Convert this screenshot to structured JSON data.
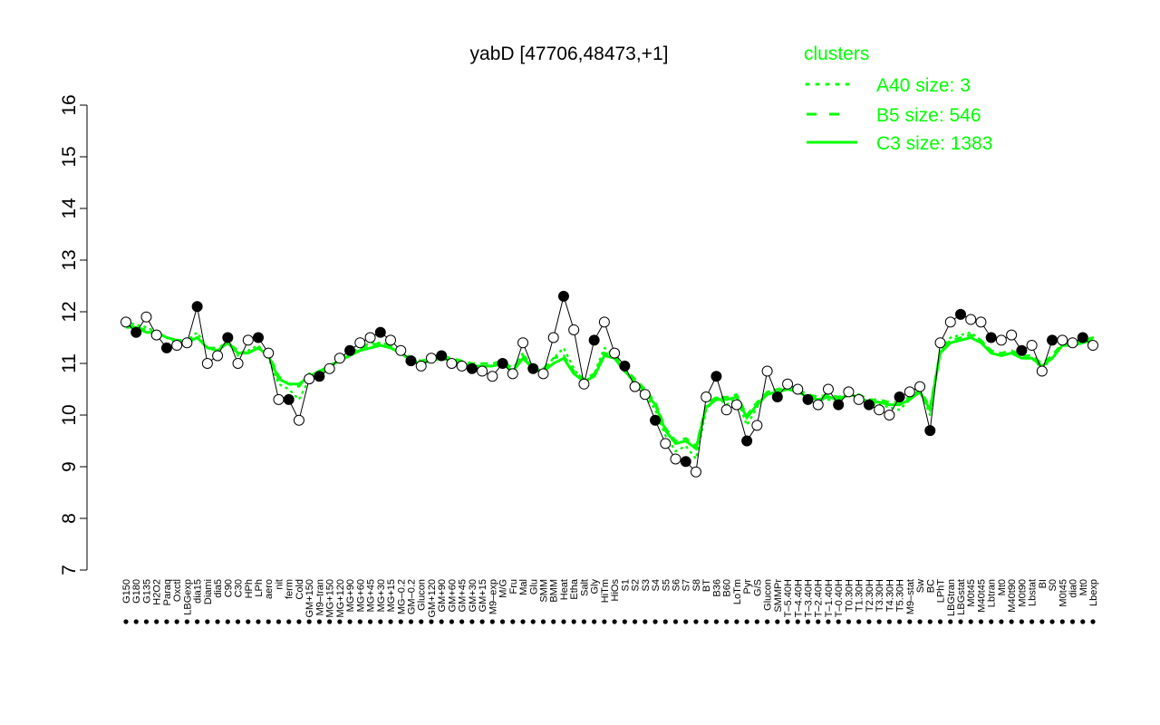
{
  "chart_data": {
    "type": "line",
    "title": "yabD [47706,48473,+1]",
    "xlabel": "",
    "ylabel": "",
    "ylim": [
      7,
      16
    ],
    "yticks": [
      7,
      8,
      9,
      10,
      11,
      12,
      13,
      14,
      15,
      16
    ],
    "legend": {
      "title": "clusters",
      "position": "top-right",
      "entries": [
        {
          "label": "A40 size: 3",
          "style": "dotted"
        },
        {
          "label": "B5 size: 546",
          "style": "dashed"
        },
        {
          "label": "C3 size: 1383",
          "style": "solid"
        }
      ]
    },
    "x_tick_labels": [
      "G150",
      "G180",
      "G135",
      "H2O2",
      "Paraq",
      "Oxctl",
      "LBGexp",
      "dia15",
      "Diami",
      "dia5",
      "C90",
      "C30",
      "HPh",
      "LPh",
      "aero",
      "nit",
      "ferm",
      "Cold",
      "GM+150",
      "M9–tran",
      "MG+150",
      "MG+120",
      "MG+90",
      "MG+60",
      "MG+45",
      "MG+30",
      "MG+15",
      "MG–0.2",
      "GM–0.2",
      "Glucon",
      "GM+120",
      "GM+90",
      "GM+60",
      "GM+45",
      "GM+30",
      "GM+15",
      "M9–exp",
      "M/G",
      "Fru",
      "Mal",
      "Glu",
      "SMM",
      "BMM",
      "Heat",
      "Etha",
      "Salt",
      "Gly",
      "HiTm",
      "HiOs",
      "S1",
      "S2",
      "S3",
      "S4",
      "S5",
      "S6",
      "S7",
      "S8",
      "BT",
      "B36",
      "B60",
      "LoTm",
      "Pyr",
      "G/S",
      "Glucon",
      "SMMPr",
      "T–5.40H",
      "T–4.40H",
      "T–3.40H",
      "T–2.40H",
      "T–1.40H",
      "T–0.40H",
      "T0.30H",
      "T1.30H",
      "T2.30H",
      "T3.30H",
      "T4.30H",
      "T5.30H",
      "M9–stat",
      "Sw",
      "BC",
      "LPhT",
      "LBGtran",
      "LBGstat",
      "M0t45",
      "M40t45",
      "Lbtran",
      "Mt0",
      "M40t90",
      "M0t90",
      "Lbstat",
      "BI",
      "S0",
      "M0t45",
      "dia0",
      "Mt0",
      "Lbexp"
    ],
    "series": [
      {
        "name": "C3 size: 1383",
        "style": "solid",
        "color": "#00ff00",
        "values": [
          11.7,
          11.7,
          11.6,
          11.6,
          11.5,
          11.45,
          11.4,
          11.5,
          11.3,
          11.25,
          11.4,
          11.2,
          11.2,
          11.3,
          11.15,
          10.7,
          10.6,
          10.6,
          10.75,
          10.85,
          10.95,
          11.05,
          11.15,
          11.25,
          11.3,
          11.35,
          11.3,
          11.2,
          11.05,
          11.0,
          11.05,
          11.1,
          11.05,
          11.0,
          10.95,
          10.95,
          10.95,
          11.0,
          10.85,
          11.1,
          10.9,
          10.85,
          11.0,
          11.1,
          10.8,
          10.65,
          10.75,
          11.15,
          11.1,
          10.85,
          10.65,
          10.45,
          10.2,
          9.7,
          9.45,
          9.5,
          9.35,
          10.15,
          10.3,
          10.3,
          10.35,
          9.95,
          10.2,
          10.4,
          10.45,
          10.5,
          10.45,
          10.35,
          10.3,
          10.35,
          10.3,
          10.4,
          10.35,
          10.25,
          10.25,
          10.2,
          10.2,
          10.3,
          10.45,
          10.1,
          11.2,
          11.4,
          11.45,
          11.5,
          11.4,
          11.2,
          11.15,
          11.2,
          11.1,
          11.1,
          10.95,
          11.1,
          11.35,
          11.35,
          11.4,
          11.45
        ]
      },
      {
        "name": "B5 size: 546",
        "style": "dashed",
        "color": "#00ff00",
        "values": [
          11.75,
          11.7,
          11.65,
          11.6,
          11.5,
          11.45,
          11.45,
          11.5,
          11.3,
          11.3,
          11.4,
          11.25,
          11.2,
          11.3,
          11.2,
          10.75,
          10.6,
          10.55,
          10.8,
          10.85,
          10.95,
          11.1,
          11.2,
          11.3,
          11.35,
          11.4,
          11.35,
          11.25,
          11.1,
          11.05,
          11.1,
          11.15,
          11.1,
          11.05,
          11.0,
          11.0,
          11.0,
          11.05,
          10.9,
          11.15,
          10.95,
          10.9,
          11.1,
          11.15,
          10.85,
          10.7,
          10.8,
          11.2,
          11.15,
          10.9,
          10.7,
          10.5,
          10.25,
          9.75,
          9.5,
          9.55,
          9.4,
          10.2,
          10.35,
          10.35,
          10.4,
          10.0,
          10.25,
          10.45,
          10.5,
          10.55,
          10.5,
          10.4,
          10.35,
          10.4,
          10.35,
          10.45,
          10.4,
          10.3,
          10.3,
          10.25,
          10.25,
          10.35,
          10.5,
          10.15,
          11.25,
          11.45,
          11.5,
          11.55,
          11.45,
          11.25,
          11.2,
          11.25,
          11.15,
          11.15,
          11.0,
          11.15,
          11.4,
          11.4,
          11.45,
          11.5
        ]
      },
      {
        "name": "A40 size: 3",
        "style": "dotted",
        "color": "#00ff00",
        "values": [
          11.8,
          11.75,
          11.7,
          11.6,
          11.5,
          11.4,
          11.45,
          11.6,
          11.3,
          11.25,
          11.45,
          11.15,
          11.25,
          11.35,
          11.1,
          10.6,
          10.5,
          10.3,
          10.7,
          10.8,
          10.9,
          11.1,
          11.2,
          11.3,
          11.4,
          11.4,
          11.35,
          11.2,
          11.05,
          11.0,
          11.05,
          11.1,
          11.05,
          11.0,
          10.9,
          10.9,
          10.95,
          11.0,
          10.85,
          11.2,
          10.9,
          10.85,
          11.1,
          11.3,
          10.9,
          10.6,
          10.8,
          11.3,
          11.15,
          10.85,
          10.6,
          10.4,
          10.1,
          9.6,
          9.3,
          9.4,
          9.15,
          10.1,
          10.35,
          10.2,
          10.35,
          9.8,
          10.15,
          10.45,
          10.5,
          10.5,
          10.45,
          10.3,
          10.3,
          10.3,
          10.25,
          10.4,
          10.35,
          10.2,
          10.2,
          10.15,
          10.1,
          10.3,
          10.5,
          10.0,
          11.25,
          11.5,
          11.55,
          11.6,
          11.45,
          11.2,
          11.15,
          11.2,
          11.1,
          11.1,
          10.9,
          11.1,
          11.4,
          11.4,
          11.45,
          11.5
        ]
      },
      {
        "name": "",
        "style": "black-line-points",
        "color": "#000000",
        "values": [
          11.8,
          11.6,
          11.9,
          11.55,
          11.3,
          11.35,
          11.4,
          12.1,
          11.0,
          11.15,
          11.5,
          11.0,
          11.45,
          11.5,
          11.2,
          10.3,
          10.3,
          9.9,
          10.7,
          10.75,
          10.9,
          11.1,
          11.25,
          11.4,
          11.5,
          11.6,
          11.45,
          11.25,
          11.05,
          10.95,
          11.1,
          11.15,
          11.0,
          10.95,
          10.9,
          10.85,
          10.75,
          11.0,
          10.8,
          11.4,
          10.9,
          10.8,
          11.5,
          12.3,
          11.65,
          10.6,
          11.45,
          11.8,
          11.2,
          10.95,
          10.55,
          10.4,
          9.9,
          9.45,
          9.15,
          9.1,
          8.9,
          10.35,
          10.75,
          10.1,
          10.2,
          9.5,
          9.8,
          10.85,
          10.35,
          10.6,
          10.5,
          10.3,
          10.2,
          10.5,
          10.2,
          10.45,
          10.3,
          10.2,
          10.1,
          10.0,
          10.35,
          10.45,
          10.55,
          9.7,
          11.4,
          11.8,
          11.95,
          11.85,
          11.8,
          11.5,
          11.45,
          11.55,
          11.25,
          11.35,
          10.85,
          11.45,
          11.45,
          11.4,
          11.5,
          11.35
        ]
      }
    ]
  }
}
